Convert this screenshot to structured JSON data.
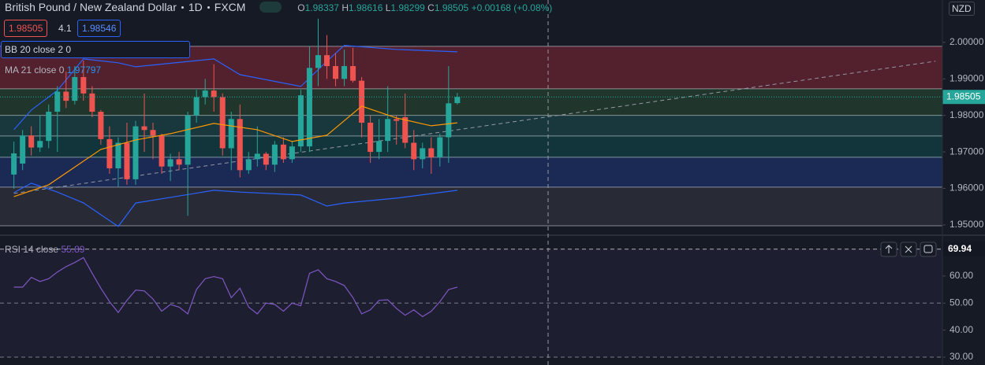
{
  "header": {
    "title": "British Pound / New Zealand Dollar",
    "interval": "1D",
    "exchange": "FXCM",
    "ohlc_labels": [
      "O",
      "H",
      "L",
      "C"
    ],
    "change": "+0.00168 (+0.08%)",
    "spread": 4.1,
    "ask": 1.98546,
    "currency": "NZD"
  },
  "chart_data": [
    {
      "type": "candlestick",
      "open": [
        1.9638,
        1.9668,
        1.9745,
        1.9712,
        1.973,
        1.981,
        1.9865,
        1.984,
        1.9905,
        1.986,
        1.981,
        1.9735,
        1.9655,
        1.9725,
        1.9625,
        1.977,
        1.976,
        1.9745,
        1.966,
        1.968,
        1.9665,
        1.98,
        1.985,
        1.9868,
        1.985,
        1.971,
        1.979,
        1.965,
        1.968,
        1.9695,
        1.9665,
        1.972,
        1.968,
        1.9715,
        1.9715,
        1.993,
        1.9965,
        1.9935,
        1.99,
        1.9935,
        1.9895,
        1.978,
        1.97,
        1.973,
        1.979,
        1.9795,
        1.9725,
        1.968,
        1.971,
        1.9685,
        1.974,
        1.98337
      ],
      "high": [
        1.9728,
        1.976,
        1.977,
        1.98,
        1.983,
        1.988,
        1.992,
        1.9935,
        1.995,
        1.988,
        1.9815,
        1.977,
        1.974,
        1.978,
        1.9785,
        1.986,
        1.978,
        1.975,
        1.9695,
        1.97,
        1.981,
        1.987,
        1.99,
        1.994,
        1.986,
        1.981,
        1.983,
        1.97,
        1.977,
        1.97,
        1.973,
        1.974,
        1.973,
        1.987,
        1.999,
        2.0065,
        2.002,
        1.997,
        1.998,
        1.9985,
        1.9905,
        1.98,
        1.979,
        1.988,
        1.98,
        1.986,
        1.976,
        1.9725,
        1.974,
        1.975,
        1.9935,
        1.98616
      ],
      "low": [
        1.9599,
        1.965,
        1.969,
        1.97,
        1.971,
        1.97,
        1.982,
        1.983,
        1.984,
        1.9795,
        1.972,
        1.964,
        1.9605,
        1.961,
        1.961,
        1.97,
        1.968,
        1.964,
        1.962,
        1.965,
        1.9525,
        1.978,
        1.983,
        1.981,
        1.969,
        1.965,
        1.963,
        1.964,
        1.966,
        1.965,
        1.9645,
        1.967,
        1.967,
        1.97,
        1.97,
        1.988,
        1.99,
        1.988,
        1.988,
        1.989,
        1.974,
        1.967,
        1.968,
        1.97,
        1.972,
        1.971,
        1.965,
        1.9655,
        1.964,
        1.966,
        1.967,
        1.98299
      ],
      "close": [
        1.9696,
        1.9745,
        1.9712,
        1.973,
        1.981,
        1.9865,
        1.984,
        1.9905,
        1.986,
        1.981,
        1.9735,
        1.9655,
        1.9725,
        1.9625,
        1.977,
        1.976,
        1.9745,
        1.966,
        1.968,
        1.9665,
        1.98,
        1.985,
        1.9868,
        1.985,
        1.971,
        1.979,
        1.965,
        1.968,
        1.9695,
        1.9665,
        1.972,
        1.968,
        1.9715,
        1.9855,
        1.993,
        1.9965,
        1.9935,
        1.99,
        1.9935,
        1.9895,
        1.978,
        1.97,
        1.973,
        1.979,
        1.9785,
        1.9725,
        1.968,
        1.971,
        1.9685,
        1.974,
        1.9833,
        1.98505
      ],
      "up_color": "#26a69a",
      "down_color": "#ef5350",
      "xlim": [
        -1.6,
        106.8
      ],
      "ylim": [
        1.9474,
        2.0116
      ],
      "yticks": [
        {
          "value": 2.0,
          "label": "2.00000"
        },
        {
          "value": 1.99,
          "label": "1.99000"
        },
        {
          "value": 1.98,
          "label": "1.98000"
        },
        {
          "value": 1.97,
          "label": "1.97000"
        },
        {
          "value": 1.96,
          "label": "1.96000"
        },
        {
          "value": 1.95,
          "label": "1.95000"
        }
      ],
      "bands": {
        "name": "BB 20 close 2 0",
        "color": "#2962ff",
        "x": [
          0,
          2,
          5,
          8,
          12,
          14,
          23,
          26,
          33,
          36,
          38,
          44,
          51
        ],
        "upper": [
          1.97608,
          1.98147,
          1.98685,
          1.99547,
          1.9944,
          1.9933,
          1.99547,
          1.99116,
          1.98793,
          1.99483,
          1.99914,
          1.99806,
          1.99741
        ],
        "lower": [
          1.95884,
          1.96142,
          1.959,
          1.95603,
          1.94957,
          1.956,
          1.95948,
          1.959,
          1.95819,
          1.95517,
          1.956,
          1.95733,
          1.95948
        ]
      },
      "ma": {
        "name": "MA 21 close 0",
        "color": "#ff9800",
        "x": [
          0,
          4,
          8,
          10,
          14,
          18,
          23,
          28,
          32,
          36,
          40,
          44,
          48,
          51
        ],
        "values": [
          1.95776,
          1.96099,
          1.96746,
          1.97069,
          1.97328,
          1.975,
          1.9778,
          1.97608,
          1.97284,
          1.97457,
          1.98254,
          1.97931,
          1.97716,
          1.97797
        ]
      },
      "levels": [
        1.99892,
        1.98728,
        1.98,
        1.97435,
        1.96853,
        1.96034,
        1.94978
      ],
      "zone_colors": [
        "rgba(242,54,69,0.28)",
        "rgba(76,175,80,0.18)",
        "rgba(38,166,154,0.22)",
        "rgba(0,150,136,0.22)",
        "rgba(41,98,255,0.22)",
        "rgba(120,123,134,0.18)"
      ],
      "trendline": {
        "x": [
          0,
          106
        ],
        "y": [
          1.95862,
          1.99483
        ]
      }
    },
    {
      "type": "line",
      "series": [
        {
          "name": "RSI 14 close",
          "color": "#7e57c2",
          "values": [
            55.9,
            55.9,
            59.5,
            58.0,
            59.0,
            61.5,
            63.5,
            65.0,
            66.8,
            61.0,
            55.5,
            50.5,
            46.5,
            51.0,
            54.8,
            54.5,
            51.5,
            47.0,
            49.5,
            48.5,
            46.0,
            55.0,
            59.0,
            59.8,
            59.0,
            52.0,
            55.5,
            48.5,
            46.0,
            50.0,
            49.5,
            47.0,
            50.0,
            49.0,
            61.0,
            62.3,
            59.0,
            58.0,
            56.5,
            52.0,
            46.0,
            47.5,
            51.0,
            51.2,
            48.0,
            45.5,
            47.5,
            45.0,
            47.0,
            50.5,
            55.0,
            55.89
          ]
        }
      ],
      "xlim": [
        -1.6,
        106.8
      ],
      "ylim": [
        27.1,
        74.8
      ],
      "yticks": [
        {
          "value": 60,
          "label": "60.00"
        },
        {
          "value": 50,
          "label": "50.00"
        },
        {
          "value": 40,
          "label": "40.00"
        },
        {
          "value": 30,
          "label": "30.00"
        }
      ],
      "levels": [
        70,
        50,
        30
      ],
      "crosshair": {
        "value": 69.94
      }
    }
  ]
}
